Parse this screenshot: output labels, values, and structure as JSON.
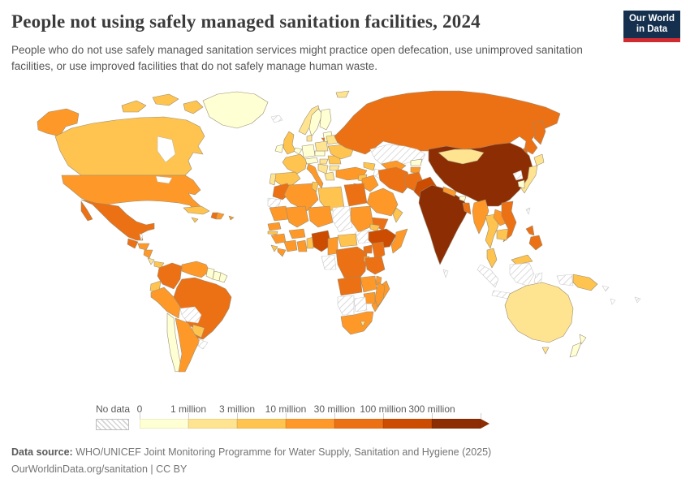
{
  "header": {
    "title": "People not using safely managed sanitation facilities, 2024",
    "subtitle": "People who do not use safely managed sanitation services might practice open defecation, use unimproved sanitation facilities, or use improved facilities that do not safely manage human waste.",
    "logo": {
      "line1": "Our World",
      "line2": "in Data"
    }
  },
  "colors": {
    "logo_bg": "#15304E",
    "logo_accent": "#CE2C31",
    "title_text": "#3b3b3b",
    "border_data": "#9b8d72",
    "border_no_data": "#c9c9c9"
  },
  "chart_data": {
    "type": "choropleth_map",
    "title": "People not using safely managed sanitation facilities",
    "year": 2024,
    "unit": "people",
    "projection": "world",
    "legend": {
      "no_data_label": "No data",
      "tick_labels": [
        "0",
        "1 million",
        "3 million",
        "10 million",
        "30 million",
        "100 million",
        "300 million"
      ],
      "bin_ranges": [
        "0-1 million",
        "1-3 million",
        "3-10 million",
        "10-30 million",
        "30-100 million",
        "100-300 million",
        "300 million+"
      ],
      "colors": [
        "#FFFFD4",
        "#FEE391",
        "#FEC44F",
        "#FE9929",
        "#EC7014",
        "#CC4C02",
        "#8C2D04"
      ],
      "no_data_pattern": "diagonal-hatch"
    },
    "countries": {
      "greenland": 0,
      "canada": 2,
      "united_states": 3,
      "mexico": 4,
      "guatemala": 4,
      "belize": "no-data",
      "honduras": 3,
      "nicaragua": 3,
      "costa_rica": 1,
      "panama": 2,
      "cuba": 2,
      "jamaica": 2,
      "haiti": 4,
      "dominican_republic": 3,
      "puerto_rico": 3,
      "colombia": 4,
      "venezuela": 3,
      "guyana": 0,
      "suriname": 0,
      "french_guiana": 0,
      "ecuador": 2,
      "peru": 3,
      "brazil": 4,
      "bolivia": "no-data",
      "paraguay": 2,
      "chile": 0,
      "argentina": 3,
      "uruguay": "no-data",
      "iceland": "no-data",
      "norway": 1,
      "sweden": 0,
      "finland": 0,
      "baltics": 0,
      "uk": 2,
      "ireland": 0,
      "denmark": 1,
      "benelux": 0,
      "germany": 0,
      "france": 2,
      "spain": 2,
      "portugal": 1,
      "switzerland_austria": 0,
      "italy": 3,
      "czech_slovakia": 0,
      "poland": 1,
      "hungary": 1,
      "balkans": 1,
      "romania": 2,
      "bulgaria": 1,
      "greece": 1,
      "belarus": 1,
      "ukraine": 2,
      "svalbard": 1,
      "russia": 4,
      "kazakhstan": "no-data",
      "uzbekistan": 3,
      "turkmenistan": "no-data",
      "kyrgyzstan": 0,
      "tajikistan": 3,
      "caucasus": 2,
      "turkey": 3,
      "syria": 2,
      "iraq": 3,
      "jordan_israel": 1,
      "saudi_arabia": 3,
      "yemen": 4,
      "oman": 2,
      "iran": 4,
      "afghanistan": 4,
      "pakistan": 5,
      "india": 6,
      "nepal": 3,
      "bhutan": 0,
      "bangladesh": 4,
      "sri_lanka": "no-data",
      "china": 6,
      "mongolia": 1,
      "north_korea": "no-data",
      "south_korea": 0,
      "japan": 1,
      "taiwan": "no-data",
      "myanmar": 3,
      "thailand": 2,
      "laos": 3,
      "vietnam": 4,
      "cambodia": 2,
      "malaysia": 2,
      "indonesia": "no-data",
      "philippines": 4,
      "papua_new_guinea": 2,
      "morocco": 4,
      "western_sahara": "no-data",
      "algeria": 3,
      "tunisia": 2,
      "libya": 2,
      "egypt": 4,
      "mauritania": 3,
      "mali": 3,
      "niger": 3,
      "chad": "no-data",
      "sudan": 3,
      "south_sudan": "no-data",
      "eritrea": 2,
      "ethiopia": 5,
      "somalia": 3,
      "senegal": 3,
      "gambia": 2,
      "guinea": 3,
      "sierra_leone": 2,
      "liberia": 3,
      "cote_divoire": 3,
      "ghana": 3,
      "togo_benin": 2,
      "burkina_faso": 3,
      "nigeria": 5,
      "cameroon": 3,
      "central_african_republic": 2,
      "gabon_congo": "no-data",
      "drc": 4,
      "uganda": 4,
      "kenya": 4,
      "rwanda_burundi": 3,
      "tanzania": 4,
      "angola": 4,
      "zambia": 3,
      "malawi": 3,
      "mozambique": 3,
      "zimbabwe": 3,
      "namibia": "no-data",
      "botswana": "no-data",
      "south_africa": 3,
      "lesotho": 1,
      "madagascar": 3,
      "australia": 1,
      "new_zealand": 0,
      "solomon_islands": "no-data",
      "vanuatu": "no-data",
      "fiji": "no-data"
    }
  },
  "footer": {
    "source_label": "Data source:",
    "source_text": " WHO/UNICEF Joint Monitoring Programme for Water Supply, Sanitation and Hygiene (2025)",
    "link_text": "OurWorldinData.org/sanitation",
    "license_text": " | CC BY"
  }
}
